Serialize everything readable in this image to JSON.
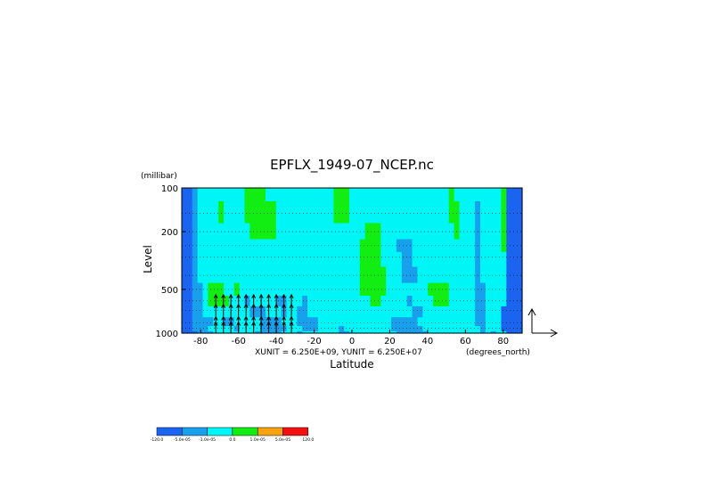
{
  "chart_data": {
    "type": "heatmap",
    "title": "EPFLX_1949-07_NCEP.nc",
    "xlabel": "Latitude",
    "ylabel": "Level",
    "y_unit_label": "(millibar)",
    "x_unit_label": "(degrees_north)",
    "vector_scale_label": "XUNIT = 6.250E+09, YUNIT = 6.250E+07",
    "xlim": [
      -90,
      90
    ],
    "ylim": [
      1000,
      100
    ],
    "y_scale": "log",
    "x_ticks": [
      -80,
      -60,
      -40,
      -20,
      0,
      20,
      40,
      60,
      80
    ],
    "x_tick_labels": [
      "-80",
      "-60",
      "-40",
      "-20",
      "0",
      "20",
      "40",
      "60",
      "80"
    ],
    "y_ticks": [
      1000,
      500,
      200,
      100
    ],
    "y_tick_labels": [
      "1000",
      "500",
      "200",
      "100"
    ],
    "grid": "dotted horizontal lines at data levels",
    "colorbar": {
      "levels": [
        -120.0,
        -5e-05,
        -1e-05,
        0.0,
        1e-05,
        5e-05,
        120.0
      ],
      "labels": [
        "-120.0",
        "-5.0e-05",
        "-1.0e-05",
        "0.0",
        "1.0e-05",
        "5.0e-05",
        "120.0"
      ],
      "colors": [
        "#1a64f0",
        "#19a0ec",
        "#00f6f6",
        "#12ee12",
        "#f7a30f",
        "#f31010"
      ]
    },
    "levels_grid": [
      1000,
      925,
      850,
      700,
      600,
      500,
      400,
      300,
      250,
      200,
      150,
      100
    ],
    "field_rows": [
      "00011122222222111112221222222211222222222111111222222222212122000",
      "00111222221222211111222111222212222222221111112222222222212220000",
      "00111122112222211112221111222222222222221111122222222222112220000",
      "00112222222221112221221122222222222222222222112222222222112220000",
      "00112333322212222211222122222222222233222221222233322222112222000",
      "00112333223222222222222222222222223333322222222333322222112222000",
      "00122222222222222222222222222222223333322211122222222222122222000",
      "00122222222222222222222222222222223333222211222222222222122222000",
      "00122222222222222222222222222222223333222111222222222222122223000",
      "00122222222223333322222222222222222333222222222222223222122223000",
      "00122223222233333322222222222333222222222222222222233222122223000",
      "00122222222233332222222222222333222222222222222222232222222223000"
    ],
    "vectors": {
      "latitudes": [
        -72,
        -68,
        -64,
        -60,
        -56,
        -52,
        -48,
        -44,
        -40,
        -36,
        -32
      ],
      "levels": [
        925,
        850,
        700,
        600
      ],
      "direction": "upward"
    }
  }
}
